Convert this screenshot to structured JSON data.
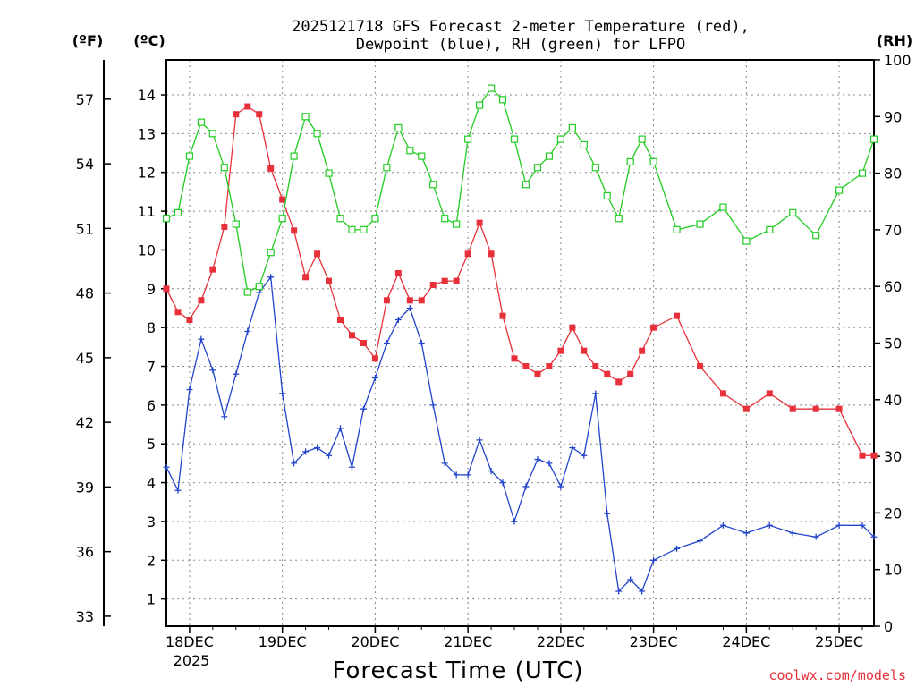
{
  "chart_data": {
    "type": "line",
    "title_line1": "2025121718 GFS Forecast 2-meter Temperature (red),",
    "title_line2": "Dewpoint (blue), RH (green) for LFPO",
    "xlabel": "Forecast Time (UTC)",
    "credit": "coolwx.com/models",
    "unit_f": "(ºF)",
    "unit_c": "(ºC)",
    "unit_rh": "(RH)",
    "year_label": "2025",
    "x_unit": "days since 2025-12-17 18Z",
    "xlim": [
      0,
      7.625
    ],
    "ylim_c": [
      0.3,
      14.9
    ],
    "ylim_rh": [
      0,
      100
    ],
    "x_ticks": [
      {
        "x": 0.25,
        "label": "18DEC"
      },
      {
        "x": 1.25,
        "label": "19DEC"
      },
      {
        "x": 2.25,
        "label": "20DEC"
      },
      {
        "x": 3.25,
        "label": "21DEC"
      },
      {
        "x": 4.25,
        "label": "22DEC"
      },
      {
        "x": 5.25,
        "label": "23DEC"
      },
      {
        "x": 6.25,
        "label": "24DEC"
      },
      {
        "x": 7.25,
        "label": "25DEC"
      }
    ],
    "c_ticks": [
      1,
      2,
      3,
      4,
      5,
      6,
      7,
      8,
      9,
      10,
      11,
      12,
      13,
      14
    ],
    "f_ticks": [
      33,
      36,
      39,
      42,
      45,
      48,
      51,
      54,
      57
    ],
    "rh_ticks": [
      0,
      10,
      20,
      30,
      40,
      50,
      60,
      70,
      80,
      90,
      100
    ],
    "series": [
      {
        "name": "Temperature",
        "color": "#e8303a",
        "marker": "square-filled",
        "x": [
          0,
          0.125,
          0.25,
          0.375,
          0.5,
          0.625,
          0.75,
          0.875,
          1,
          1.125,
          1.25,
          1.375,
          1.5,
          1.625,
          1.75,
          1.875,
          2,
          2.125,
          2.25,
          2.375,
          2.5,
          2.625,
          2.75,
          2.875,
          3,
          3.125,
          3.25,
          3.375,
          3.5,
          3.625,
          3.75,
          3.875,
          4,
          4.125,
          4.25,
          4.375,
          4.5,
          4.625,
          4.75,
          4.875,
          5,
          5.125,
          5.25,
          5.5,
          5.75,
          6,
          6.25,
          6.5,
          6.75,
          7,
          7.25,
          7.5,
          7.625
        ],
        "y": [
          9.0,
          8.4,
          8.2,
          8.7,
          9.5,
          10.6,
          13.5,
          13.7,
          13.5,
          12.1,
          11.3,
          10.5,
          9.3,
          9.9,
          9.2,
          8.2,
          7.8,
          7.6,
          7.2,
          8.7,
          9.4,
          8.7,
          8.7,
          9.1,
          9.2,
          9.2,
          9.9,
          10.7,
          9.9,
          8.3,
          7.2,
          7.0,
          6.8,
          7.0,
          7.4,
          8.0,
          7.4,
          7.0,
          6.8,
          6.6,
          6.8,
          7.4,
          8.0,
          8.3,
          7.0,
          6.3,
          5.9,
          6.3,
          5.9,
          5.9,
          5.9,
          4.7,
          4.7
        ]
      },
      {
        "name": "Dewpoint",
        "color": "#2244cc",
        "marker": "plus",
        "x": [
          0,
          0.125,
          0.25,
          0.375,
          0.5,
          0.625,
          0.75,
          0.875,
          1,
          1.125,
          1.25,
          1.375,
          1.5,
          1.625,
          1.75,
          1.875,
          2,
          2.125,
          2.25,
          2.375,
          2.5,
          2.625,
          2.75,
          2.875,
          3,
          3.125,
          3.25,
          3.375,
          3.5,
          3.625,
          3.75,
          3.875,
          4,
          4.125,
          4.25,
          4.375,
          4.5,
          4.625,
          4.75,
          4.875,
          5,
          5.125,
          5.25,
          5.5,
          5.75,
          6,
          6.25,
          6.5,
          6.75,
          7,
          7.25,
          7.5,
          7.625
        ],
        "y": [
          4.4,
          3.8,
          6.4,
          7.7,
          6.9,
          5.7,
          6.8,
          7.9,
          8.9,
          9.3,
          6.3,
          4.5,
          4.8,
          4.9,
          4.7,
          5.4,
          4.4,
          5.9,
          6.7,
          7.6,
          8.2,
          8.5,
          7.6,
          6.0,
          4.5,
          4.2,
          4.2,
          5.1,
          4.3,
          4.0,
          3.0,
          3.9,
          4.6,
          4.5,
          3.9,
          4.9,
          4.7,
          6.3,
          3.2,
          1.2,
          1.5,
          1.2,
          2.0,
          2.3,
          2.5,
          2.9,
          2.7,
          2.9,
          2.7,
          2.6,
          2.9,
          2.9,
          2.6
        ]
      },
      {
        "name": "RH",
        "color": "#22cc22",
        "marker": "square-open",
        "axis": "rh",
        "x": [
          0,
          0.125,
          0.25,
          0.375,
          0.5,
          0.625,
          0.75,
          0.875,
          1,
          1.125,
          1.25,
          1.375,
          1.5,
          1.625,
          1.75,
          1.875,
          2,
          2.125,
          2.25,
          2.375,
          2.5,
          2.625,
          2.75,
          2.875,
          3,
          3.125,
          3.25,
          3.375,
          3.5,
          3.625,
          3.75,
          3.875,
          4,
          4.125,
          4.25,
          4.375,
          4.5,
          4.625,
          4.75,
          4.875,
          5,
          5.125,
          5.25,
          5.5,
          5.75,
          6,
          6.25,
          6.5,
          6.75,
          7,
          7.25,
          7.5,
          7.625
        ],
        "y": [
          72,
          73,
          83,
          89,
          87,
          81,
          71,
          59,
          60,
          66,
          72,
          83,
          90,
          87,
          80,
          72,
          70,
          70,
          72,
          81,
          88,
          84,
          83,
          78,
          72,
          71,
          86,
          92,
          95,
          93,
          86,
          78,
          81,
          83,
          86,
          88,
          85,
          81,
          76,
          72,
          82,
          86,
          82,
          70,
          71,
          74,
          68,
          70,
          73,
          69,
          77,
          80,
          86
        ]
      }
    ]
  }
}
